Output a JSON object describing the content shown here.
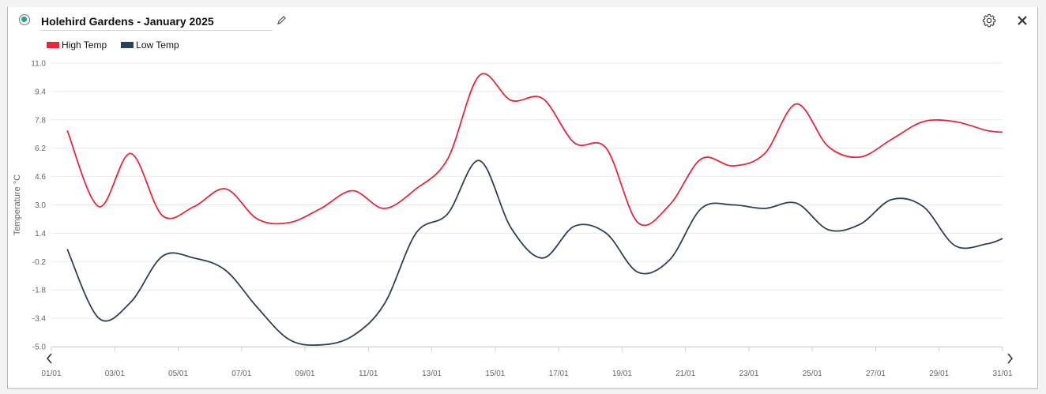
{
  "header": {
    "title": "Holehird Gardens - January 2025"
  },
  "icons": {
    "status": "status-radio-icon",
    "edit": "pencil-icon",
    "settings": "gear-icon",
    "close": "close-icon",
    "prev": "chevron-left-icon",
    "next": "chevron-right-icon"
  },
  "colors": {
    "high": "#e8263c",
    "low": "#2e3f57",
    "accent": "#1fa58a"
  },
  "chart_data": {
    "type": "line",
    "ylabel": "Temperature °C",
    "xlabel": "",
    "ylim": [
      -5.0,
      11.0
    ],
    "y_ticks": [
      "11.0",
      "9.4",
      "7.8",
      "6.2",
      "4.6",
      "3.0",
      "1.4",
      "-0.2",
      "-1.8",
      "-3.4",
      "-5.0"
    ],
    "x_ticks": [
      "01/01",
      "03/01",
      "05/01",
      "07/01",
      "09/01",
      "11/01",
      "13/01",
      "15/01",
      "17/01",
      "19/01",
      "21/01",
      "23/01",
      "25/01",
      "27/01",
      "29/01",
      "31/01"
    ],
    "x": [
      1.5,
      2.5,
      3.5,
      4.5,
      5.5,
      6.5,
      7.5,
      8.5,
      9.5,
      10.5,
      11.5,
      12.5,
      13.5,
      14.5,
      15.5,
      16.5,
      17.5,
      18.5,
      19.5,
      20.5,
      21.5,
      22.5,
      23.5,
      24.5,
      25.5,
      26.5,
      27.5,
      28.5,
      29.5,
      30.5,
      31.0
    ],
    "series": [
      {
        "name": "High Temp",
        "color": "#e8263c",
        "values": [
          7.2,
          2.9,
          5.9,
          2.4,
          2.9,
          3.9,
          2.2,
          2.0,
          2.8,
          3.8,
          2.8,
          3.9,
          5.6,
          10.3,
          8.9,
          9.0,
          6.5,
          6.2,
          2.0,
          3.0,
          5.6,
          5.2,
          5.9,
          8.7,
          6.3,
          5.7,
          6.7,
          7.7,
          7.7,
          7.2,
          7.1
        ]
      },
      {
        "name": "Low Temp",
        "color": "#2e3f57",
        "values": [
          0.5,
          -3.4,
          -2.5,
          0.1,
          0.0,
          -0.7,
          -2.8,
          -4.6,
          -4.9,
          -4.4,
          -2.6,
          1.4,
          2.5,
          5.5,
          1.7,
          0.0,
          1.8,
          1.4,
          -0.8,
          -0.1,
          2.8,
          3.0,
          2.8,
          3.1,
          1.6,
          1.9,
          3.3,
          2.9,
          0.7,
          0.8,
          1.1
        ]
      }
    ],
    "grid": true,
    "legend_position": "top-left"
  }
}
